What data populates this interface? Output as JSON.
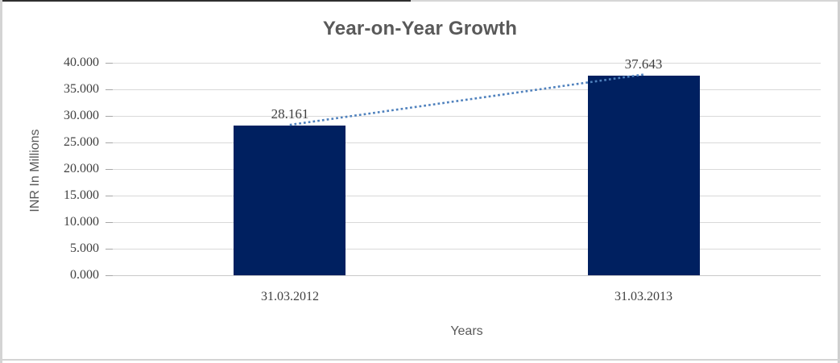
{
  "chart_data": {
    "type": "bar",
    "title": "Year-on-Year Growth",
    "categories": [
      "31.03.2012",
      "31.03.2013"
    ],
    "values": [
      28.161,
      37.643
    ],
    "data_labels": [
      "28.161",
      "37.643"
    ],
    "xlabel": "Years",
    "ylabel": "INR In Millions",
    "ylim": [
      0,
      40
    ],
    "ytick_step": 5,
    "ytick_labels": [
      "0.000",
      "5.000",
      "10.000",
      "15.000",
      "20.000",
      "25.000",
      "30.000",
      "35.000",
      "40.000"
    ],
    "grid": true,
    "legend": "none",
    "trendline": {
      "style": "dotted",
      "shape": "linear"
    },
    "colors": {
      "bar": "#002060",
      "trendline": "#4f81bd",
      "gridline": "#d9d9d9",
      "title_text": "#595959",
      "tick_text": "#404040"
    }
  }
}
